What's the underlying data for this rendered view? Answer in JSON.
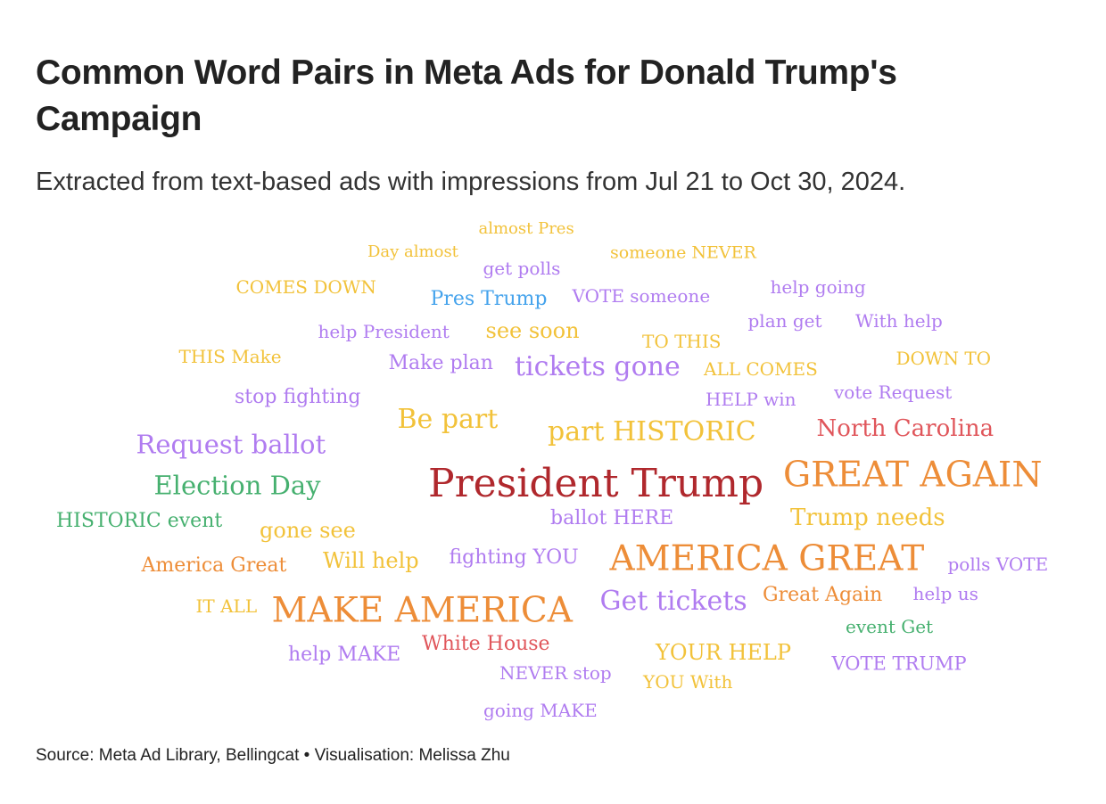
{
  "header": {
    "title": "Common Word Pairs in Meta Ads for Donald Trump's Campaign",
    "subtitle": "Extracted from text-based ads with impressions from Jul 21 to Oct 30, 2024."
  },
  "footer": {
    "source": "Source: Meta Ad Library, Bellingcat • Visualisation: Melissa Zhu"
  },
  "colors": {
    "dark_red": "#b0282d",
    "red": "#e0565b",
    "orange": "#ed8d38",
    "yellow": "#f2c23a",
    "purple": "#b07cf0",
    "green": "#46b06f",
    "blue": "#45a3ec"
  },
  "chart_data": {
    "type": "wordcloud",
    "words": [
      {
        "text": "President Trump",
        "weight": 100,
        "color": "dark_red"
      },
      {
        "text": "GREAT AGAIN",
        "weight": 88,
        "color": "orange"
      },
      {
        "text": "AMERICA GREAT",
        "weight": 88,
        "color": "orange"
      },
      {
        "text": "MAKE AMERICA",
        "weight": 88,
        "color": "orange"
      },
      {
        "text": "tickets gone",
        "weight": 68,
        "color": "purple"
      },
      {
        "text": "part HISTORIC",
        "weight": 68,
        "color": "yellow"
      },
      {
        "text": "Be part",
        "weight": 68,
        "color": "yellow"
      },
      {
        "text": "Get tickets",
        "weight": 68,
        "color": "purple"
      },
      {
        "text": "Request ballot",
        "weight": 65,
        "color": "purple"
      },
      {
        "text": "Election Day",
        "weight": 65,
        "color": "green"
      },
      {
        "text": "North Carolina",
        "weight": 58,
        "color": "red"
      },
      {
        "text": "Trump needs",
        "weight": 58,
        "color": "yellow"
      },
      {
        "text": "see soon",
        "weight": 53,
        "color": "yellow"
      },
      {
        "text": "gone see",
        "weight": 53,
        "color": "yellow"
      },
      {
        "text": "Will help",
        "weight": 53,
        "color": "yellow"
      },
      {
        "text": "YOUR HELP",
        "weight": 53,
        "color": "yellow"
      },
      {
        "text": "White House",
        "weight": 50,
        "color": "red"
      },
      {
        "text": "Pres Trump",
        "weight": 50,
        "color": "blue"
      },
      {
        "text": "Great Again",
        "weight": 50,
        "color": "orange"
      },
      {
        "text": "America Great",
        "weight": 50,
        "color": "orange"
      },
      {
        "text": "HISTORIC event",
        "weight": 50,
        "color": "green"
      },
      {
        "text": "ballot HERE",
        "weight": 50,
        "color": "purple"
      },
      {
        "text": "fighting YOU",
        "weight": 50,
        "color": "purple"
      },
      {
        "text": "Make plan",
        "weight": 50,
        "color": "purple"
      },
      {
        "text": "stop fighting",
        "weight": 50,
        "color": "purple"
      },
      {
        "text": "help MAKE",
        "weight": 50,
        "color": "purple"
      },
      {
        "text": "VOTE TRUMP",
        "weight": 48,
        "color": "purple"
      },
      {
        "text": "help President",
        "weight": 45,
        "color": "purple"
      },
      {
        "text": "VOTE someone",
        "weight": 45,
        "color": "purple"
      },
      {
        "text": "HELP win",
        "weight": 45,
        "color": "purple"
      },
      {
        "text": "NEVER stop",
        "weight": 45,
        "color": "purple"
      },
      {
        "text": "ALL COMES",
        "weight": 45,
        "color": "yellow"
      },
      {
        "text": "COMES DOWN",
        "weight": 45,
        "color": "yellow"
      },
      {
        "text": "polls VOTE",
        "weight": 45,
        "color": "purple"
      },
      {
        "text": "help going",
        "weight": 45,
        "color": "purple"
      },
      {
        "text": "With help",
        "weight": 45,
        "color": "purple"
      },
      {
        "text": "plan get",
        "weight": 45,
        "color": "purple"
      },
      {
        "text": "help us",
        "weight": 45,
        "color": "purple"
      },
      {
        "text": "vote Request",
        "weight": 45,
        "color": "purple"
      },
      {
        "text": "get polls",
        "weight": 45,
        "color": "purple"
      },
      {
        "text": "TO THIS",
        "weight": 45,
        "color": "yellow"
      },
      {
        "text": "DOWN TO",
        "weight": 45,
        "color": "yellow"
      },
      {
        "text": "THIS Make",
        "weight": 45,
        "color": "yellow"
      },
      {
        "text": "event Get",
        "weight": 45,
        "color": "green"
      },
      {
        "text": "YOU With",
        "weight": 45,
        "color": "yellow"
      },
      {
        "text": "going MAKE",
        "weight": 45,
        "color": "purple"
      },
      {
        "text": "IT ALL",
        "weight": 45,
        "color": "yellow"
      },
      {
        "text": "someone NEVER",
        "weight": 43,
        "color": "yellow"
      },
      {
        "text": "Day almost",
        "weight": 40,
        "color": "yellow"
      },
      {
        "text": "almost Pres",
        "weight": 40,
        "color": "yellow"
      }
    ]
  }
}
